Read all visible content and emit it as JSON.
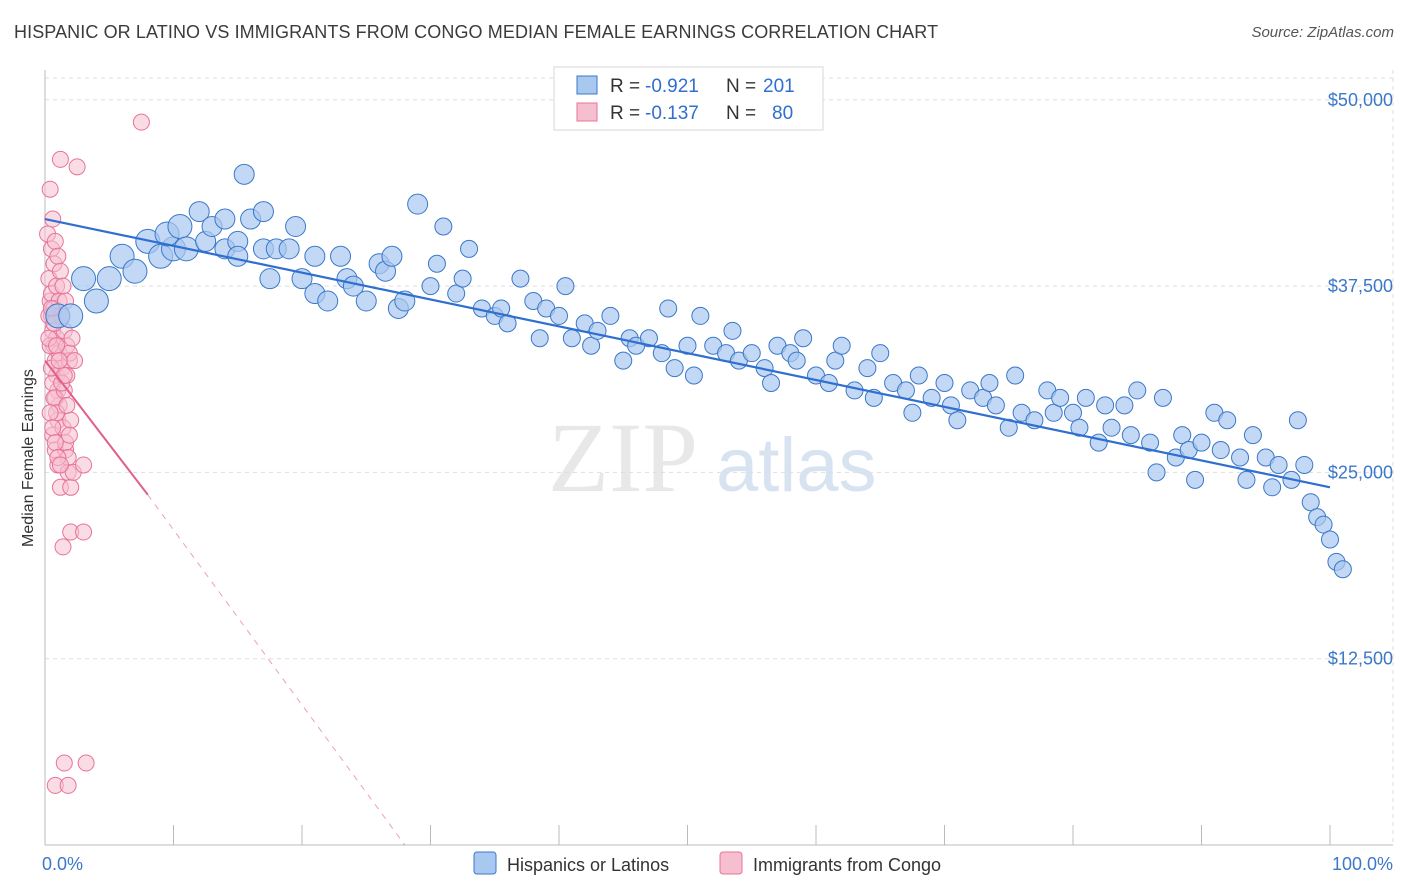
{
  "title": "HISPANIC OR LATINO VS IMMIGRANTS FROM CONGO MEDIAN FEMALE EARNINGS CORRELATION CHART",
  "source": "Source: ZipAtlas.com",
  "colors": {
    "blue_fill": "#a9c8f0",
    "blue_stroke": "#3b78c9",
    "blue_line": "#2f6fd0",
    "pink_fill": "#f6bfd0",
    "pink_stroke": "#e8739a",
    "pink_line": "#e0608a",
    "grid": "#dddddd",
    "axis_text": "#3b78c9"
  },
  "legend": {
    "rows": [
      {
        "r_label": "R = ",
        "r_value": "-0.921",
        "n_label": "N = ",
        "n_value": "201"
      },
      {
        "r_label": "R = ",
        "r_value": "-0.137",
        "n_label": "N = ",
        "n_value": "80"
      }
    ]
  },
  "watermark": {
    "zip": "ZIP",
    "atlas": "atlas"
  },
  "chart_data": {
    "type": "scatter",
    "xlabel": "",
    "ylabel": "Median Female Earnings",
    "xlim": [
      0,
      100
    ],
    "ylim": [
      0,
      52000
    ],
    "x_tick_labels": [
      "0.0%",
      "100.0%"
    ],
    "y_ticks": [
      12500,
      25000,
      37500,
      50000
    ],
    "y_tick_labels": [
      "$12,500",
      "$25,000",
      "$37,500",
      "$50,000"
    ],
    "grid": true,
    "legend_position": "top-center",
    "series": [
      {
        "name": "Hispanics or Latinos",
        "color": "#a9c8f0",
        "trend": {
          "x0": 0,
          "y0": 42000,
          "x1": 100,
          "y1": 24000,
          "style": "solid"
        },
        "points": [
          [
            1,
            35500
          ],
          [
            2,
            35500
          ],
          [
            3,
            38000
          ],
          [
            4,
            36500
          ],
          [
            5,
            38000
          ],
          [
            6,
            39500
          ],
          [
            7,
            38500
          ],
          [
            8,
            40500
          ],
          [
            9,
            39500
          ],
          [
            10,
            40000
          ],
          [
            9.5,
            41000
          ],
          [
            10.5,
            41500
          ],
          [
            11,
            40000
          ],
          [
            12,
            42500
          ],
          [
            12.5,
            40500
          ],
          [
            13,
            41500
          ],
          [
            14,
            40000
          ],
          [
            14,
            42000
          ],
          [
            15,
            40500
          ],
          [
            15,
            39500
          ],
          [
            15.5,
            45000
          ],
          [
            16,
            42000
          ],
          [
            17,
            40000
          ],
          [
            17,
            42500
          ],
          [
            17.5,
            38000
          ],
          [
            18,
            40000
          ],
          [
            19,
            40000
          ],
          [
            19.5,
            41500
          ],
          [
            20,
            38000
          ],
          [
            21,
            37000
          ],
          [
            21,
            39500
          ],
          [
            22,
            36500
          ],
          [
            23,
            39500
          ],
          [
            23.5,
            38000
          ],
          [
            24,
            37500
          ],
          [
            25,
            36500
          ],
          [
            26,
            39000
          ],
          [
            26.5,
            38500
          ],
          [
            27,
            39500
          ],
          [
            27.5,
            36000
          ],
          [
            28,
            36500
          ],
          [
            29,
            43000
          ],
          [
            30,
            37500
          ],
          [
            30.5,
            39000
          ],
          [
            31,
            41500
          ],
          [
            32,
            37000
          ],
          [
            32.5,
            38000
          ],
          [
            33,
            40000
          ],
          [
            34,
            36000
          ],
          [
            35,
            35500
          ],
          [
            35.5,
            36000
          ],
          [
            36,
            35000
          ],
          [
            37,
            38000
          ],
          [
            38,
            36500
          ],
          [
            38.5,
            34000
          ],
          [
            39,
            36000
          ],
          [
            40,
            35500
          ],
          [
            40.5,
            37500
          ],
          [
            41,
            34000
          ],
          [
            42,
            35000
          ],
          [
            42.5,
            33500
          ],
          [
            43,
            34500
          ],
          [
            44,
            35500
          ],
          [
            45,
            32500
          ],
          [
            45.5,
            34000
          ],
          [
            46,
            33500
          ],
          [
            47,
            34000
          ],
          [
            48,
            33000
          ],
          [
            48.5,
            36000
          ],
          [
            49,
            32000
          ],
          [
            50,
            33500
          ],
          [
            50.5,
            31500
          ],
          [
            51,
            35500
          ],
          [
            52,
            33500
          ],
          [
            53,
            33000
          ],
          [
            53.5,
            34500
          ],
          [
            54,
            32500
          ],
          [
            55,
            33000
          ],
          [
            56,
            32000
          ],
          [
            56.5,
            31000
          ],
          [
            57,
            33500
          ],
          [
            58,
            33000
          ],
          [
            58.5,
            32500
          ],
          [
            59,
            34000
          ],
          [
            60,
            31500
          ],
          [
            61,
            31000
          ],
          [
            61.5,
            32500
          ],
          [
            62,
            33500
          ],
          [
            63,
            30500
          ],
          [
            64,
            32000
          ],
          [
            64.5,
            30000
          ],
          [
            65,
            33000
          ],
          [
            66,
            31000
          ],
          [
            67,
            30500
          ],
          [
            67.5,
            29000
          ],
          [
            68,
            31500
          ],
          [
            69,
            30000
          ],
          [
            70,
            31000
          ],
          [
            70.5,
            29500
          ],
          [
            71,
            28500
          ],
          [
            72,
            30500
          ],
          [
            73,
            30000
          ],
          [
            73.5,
            31000
          ],
          [
            74,
            29500
          ],
          [
            75,
            28000
          ],
          [
            75.5,
            31500
          ],
          [
            76,
            29000
          ],
          [
            77,
            28500
          ],
          [
            78,
            30500
          ],
          [
            78.5,
            29000
          ],
          [
            79,
            30000
          ],
          [
            80,
            29000
          ],
          [
            80.5,
            28000
          ],
          [
            81,
            30000
          ],
          [
            82,
            27000
          ],
          [
            82.5,
            29500
          ],
          [
            83,
            28000
          ],
          [
            84,
            29500
          ],
          [
            84.5,
            27500
          ],
          [
            85,
            30500
          ],
          [
            86,
            27000
          ],
          [
            86.5,
            25000
          ],
          [
            87,
            30000
          ],
          [
            88,
            26000
          ],
          [
            88.5,
            27500
          ],
          [
            89,
            26500
          ],
          [
            89.5,
            24500
          ],
          [
            90,
            27000
          ],
          [
            91,
            29000
          ],
          [
            91.5,
            26500
          ],
          [
            92,
            28500
          ],
          [
            93,
            26000
          ],
          [
            93.5,
            24500
          ],
          [
            94,
            27500
          ],
          [
            95,
            26000
          ],
          [
            95.5,
            24000
          ],
          [
            96,
            25500
          ],
          [
            97,
            24500
          ],
          [
            97.5,
            28500
          ],
          [
            98,
            25500
          ],
          [
            98.5,
            23000
          ],
          [
            99,
            22000
          ],
          [
            99.5,
            21500
          ],
          [
            100,
            20500
          ],
          [
            100.5,
            19000
          ],
          [
            101,
            18500
          ]
        ]
      },
      {
        "name": "Immigrants from Congo",
        "color": "#f6bfd0",
        "trend": {
          "x0": 0,
          "y0": 32500,
          "x1": 8,
          "y1": 23500,
          "x2": 28,
          "y2": 0,
          "style": "solid-then-dashed"
        },
        "points": [
          [
            0.2,
            41000
          ],
          [
            0.3,
            38000
          ],
          [
            0.4,
            36500
          ],
          [
            0.5,
            35500
          ],
          [
            0.6,
            34500
          ],
          [
            0.7,
            33500
          ],
          [
            0.8,
            32500
          ],
          [
            0.9,
            31500
          ],
          [
            1.0,
            30500
          ],
          [
            1.1,
            29500
          ],
          [
            0.3,
            35500
          ],
          [
            0.5,
            37000
          ],
          [
            0.7,
            36000
          ],
          [
            0.9,
            34000
          ],
          [
            1.1,
            33000
          ],
          [
            1.3,
            32000
          ],
          [
            0.4,
            33500
          ],
          [
            0.6,
            31000
          ],
          [
            0.8,
            30000
          ],
          [
            1.0,
            28500
          ],
          [
            0.5,
            40000
          ],
          [
            0.7,
            39000
          ],
          [
            0.9,
            37500
          ],
          [
            1.1,
            36500
          ],
          [
            1.3,
            35500
          ],
          [
            1.5,
            34500
          ],
          [
            1.7,
            33500
          ],
          [
            1.9,
            32500
          ],
          [
            0.6,
            27500
          ],
          [
            0.8,
            26500
          ],
          [
            1.0,
            25500
          ],
          [
            1.2,
            24000
          ],
          [
            1.4,
            28000
          ],
          [
            1.6,
            26500
          ],
          [
            1.8,
            25000
          ],
          [
            2.0,
            24000
          ],
          [
            0.4,
            44000
          ],
          [
            1.2,
            46000
          ],
          [
            2.5,
            45500
          ],
          [
            7.5,
            48500
          ],
          [
            0.6,
            42000
          ],
          [
            0.8,
            40500
          ],
          [
            1.0,
            39500
          ],
          [
            1.2,
            38500
          ],
          [
            1.4,
            37500
          ],
          [
            1.6,
            36500
          ],
          [
            0.3,
            34000
          ],
          [
            0.5,
            32000
          ],
          [
            0.7,
            30000
          ],
          [
            0.9,
            29000
          ],
          [
            1.5,
            30500
          ],
          [
            1.7,
            31500
          ],
          [
            1.9,
            33000
          ],
          [
            2.1,
            34000
          ],
          [
            2.3,
            32500
          ],
          [
            2.0,
            28500
          ],
          [
            1.6,
            27000
          ],
          [
            1.8,
            26000
          ],
          [
            2.2,
            25000
          ],
          [
            1.4,
            20000
          ],
          [
            2.0,
            21000
          ],
          [
            3.0,
            21000
          ],
          [
            3.0,
            25500
          ],
          [
            1.5,
            5500
          ],
          [
            3.2,
            5500
          ],
          [
            0.8,
            4000
          ],
          [
            1.8,
            4000
          ],
          [
            0.5,
            36000
          ],
          [
            0.7,
            35000
          ],
          [
            0.9,
            33500
          ],
          [
            1.1,
            32500
          ],
          [
            1.3,
            31000
          ],
          [
            1.5,
            31500
          ],
          [
            1.7,
            29500
          ],
          [
            1.9,
            27500
          ],
          [
            0.4,
            29000
          ],
          [
            0.6,
            28000
          ],
          [
            0.8,
            27000
          ],
          [
            1.0,
            26000
          ],
          [
            1.2,
            25500
          ]
        ]
      }
    ]
  },
  "bottom_legend": [
    {
      "label": "Hispanics or Latinos"
    },
    {
      "label": "Immigrants from Congo"
    }
  ]
}
